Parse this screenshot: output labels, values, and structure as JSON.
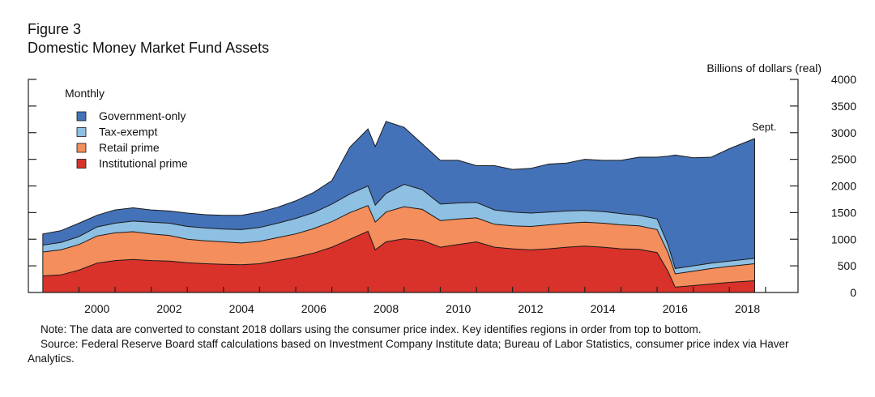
{
  "figure": {
    "number": "Figure 3",
    "title": "Domestic Money Market Fund Assets",
    "units": "Billions of dollars (real)",
    "frequency": "Monthly",
    "end_label": "Sept.",
    "note": "Note: The data are converted to constant 2018 dollars using the consumer price index. Key identifies regions in order from top to bottom.",
    "source": "Source: Federal Reserve Board staff calculations based on Investment Company Institute data; Bureau of Labor Statistics, consumer price index via Haver Analytics."
  },
  "colors": {
    "government_only": "#4472b8",
    "tax_exempt": "#8ec0e3",
    "retail_prime": "#f48e5c",
    "institutional_prime": "#d8322a"
  },
  "chart_data": {
    "type": "area",
    "stacked": true,
    "title": "Domestic Money Market Fund Assets",
    "ylabel": "Billions of dollars (real)",
    "xlabel": "",
    "xlim": [
      1998.6,
      2019.9
    ],
    "ylim": [
      0,
      4000
    ],
    "x_ticks": [
      2000,
      2002,
      2004,
      2006,
      2008,
      2010,
      2012,
      2014,
      2016,
      2018
    ],
    "y_ticks": [
      0,
      500,
      1000,
      1500,
      2000,
      2500,
      3000,
      3500,
      4000
    ],
    "legend_position": "top-left",
    "legend": [
      "Government-only",
      "Tax-exempt",
      "Retail prime",
      "Institutional prime"
    ],
    "x": [
      1999.0,
      1999.5,
      2000.0,
      2000.5,
      2001.0,
      2001.5,
      2002.0,
      2002.5,
      2003.0,
      2003.5,
      2004.0,
      2004.5,
      2005.0,
      2005.5,
      2006.0,
      2006.5,
      2007.0,
      2007.5,
      2008.0,
      2008.2,
      2008.5,
      2009.0,
      2009.5,
      2010.0,
      2010.5,
      2011.0,
      2011.5,
      2012.0,
      2012.5,
      2013.0,
      2013.5,
      2014.0,
      2014.5,
      2015.0,
      2015.5,
      2016.0,
      2016.3,
      2016.5,
      2017.0,
      2017.5,
      2018.0,
      2018.7
    ],
    "series": [
      {
        "name": "Institutional prime",
        "values": [
          310,
          330,
          420,
          550,
          600,
          620,
          600,
          590,
          560,
          540,
          530,
          520,
          540,
          600,
          660,
          740,
          850,
          1000,
          1150,
          800,
          950,
          1010,
          980,
          850,
          900,
          950,
          850,
          820,
          800,
          820,
          850,
          870,
          850,
          820,
          810,
          750,
          400,
          100,
          130,
          160,
          190,
          220
        ]
      },
      {
        "name": "Retail prime",
        "values": [
          450,
          470,
          480,
          510,
          520,
          520,
          500,
          480,
          440,
          430,
          420,
          410,
          420,
          430,
          440,
          460,
          480,
          500,
          480,
          520,
          560,
          600,
          580,
          500,
          480,
          450,
          430,
          430,
          440,
          450,
          450,
          450,
          450,
          450,
          440,
          430,
          350,
          250,
          270,
          290,
          300,
          320
        ]
      },
      {
        "name": "Tax-exempt",
        "values": [
          130,
          140,
          150,
          170,
          180,
          200,
          220,
          230,
          240,
          240,
          240,
          250,
          260,
          270,
          290,
          300,
          330,
          350,
          370,
          320,
          350,
          420,
          370,
          310,
          300,
          290,
          270,
          260,
          250,
          240,
          230,
          220,
          220,
          210,
          200,
          200,
          150,
          100,
          100,
          100,
          100,
          100
        ]
      },
      {
        "name": "Government-only",
        "values": [
          210,
          220,
          250,
          220,
          250,
          250,
          230,
          230,
          250,
          250,
          260,
          270,
          290,
          300,
          330,
          380,
          440,
          880,
          1070,
          1100,
          1350,
          1070,
          860,
          820,
          800,
          690,
          830,
          800,
          840,
          900,
          900,
          960,
          960,
          1000,
          1090,
          1160,
          1660,
          2130,
          2030,
          1990,
          2110,
          2250
        ]
      }
    ],
    "annotations": [
      "Sept.",
      "Monthly"
    ]
  }
}
